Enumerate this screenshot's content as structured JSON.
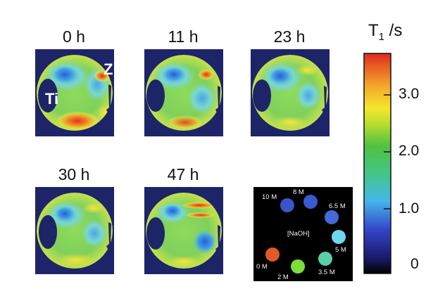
{
  "figure": {
    "panels": [
      {
        "time": "0 h"
      },
      {
        "time": "11 h"
      },
      {
        "time": "23 h"
      },
      {
        "time": "30 h"
      },
      {
        "time": "47 h"
      }
    ],
    "electrode_labels": {
      "ti": "Ti",
      "zn": "Zn"
    },
    "inset": {
      "center_label": "[NaOH]",
      "vials": [
        {
          "label": "10 M",
          "color": "#3b55c9"
        },
        {
          "label": "8 M",
          "color": "#3a5ad0"
        },
        {
          "label": "6.5 M",
          "color": "#4569d6"
        },
        {
          "label": "5 M",
          "color": "#6fd6ef"
        },
        {
          "label": "3.5 M",
          "color": "#58cfa5"
        },
        {
          "label": "2 M",
          "color": "#7edc3c"
        },
        {
          "label": "0 M",
          "color": "#e0582b"
        }
      ]
    },
    "colorbar": {
      "title": "T",
      "title_sub": "1",
      "title_unit": " /s",
      "ticks": [
        "3.0",
        "2.0",
        "1.0",
        "0"
      ]
    }
  },
  "colors": {
    "map_background": "#1d2468",
    "inset_background": "#000000"
  }
}
